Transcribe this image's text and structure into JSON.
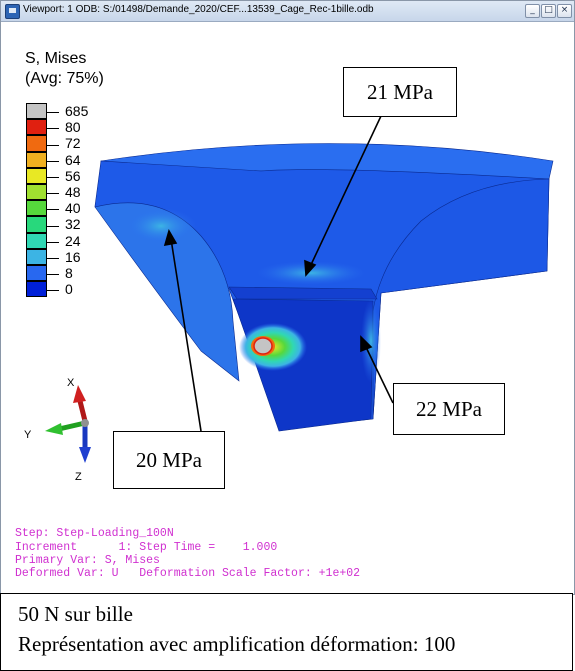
{
  "window": {
    "title": "Viewport: 1    ODB: S:/01498/Demande_2020/CEF...13539_Cage_Rec-1bille.odb",
    "buttons": {
      "minimize": "_",
      "maximize": "□",
      "close": "×"
    }
  },
  "legend": {
    "title_line1": "S, Mises",
    "title_line2": "(Avg: 75%)",
    "labels": [
      "685",
      "80",
      "72",
      "64",
      "56",
      "48",
      "40",
      "32",
      "24",
      "16",
      "8",
      "0"
    ],
    "colors": [
      "#c4c4c4",
      "#e02010",
      "#f06a10",
      "#f0b020",
      "#e8e824",
      "#a0e030",
      "#56d83c",
      "#28d87c",
      "#30d8b4",
      "#3cb4e4",
      "#2868f0",
      "#0020d8"
    ]
  },
  "callouts": {
    "top": "21 MPa",
    "right": "22 MPa",
    "left": "20 MPa"
  },
  "triad": {
    "x": "X",
    "y": "Y",
    "z": "Z"
  },
  "info": {
    "step": "Step: Step-Loading_100N",
    "increment": "Increment      1: Step Time =    1.000",
    "primary": "Primary Var: S, Mises",
    "deformed": "Deformed Var: U   Deformation Scale Factor: +1e+02"
  },
  "caption": {
    "line1": "50 N sur bille",
    "line2": "Représentation avec amplification déformation: 100"
  }
}
